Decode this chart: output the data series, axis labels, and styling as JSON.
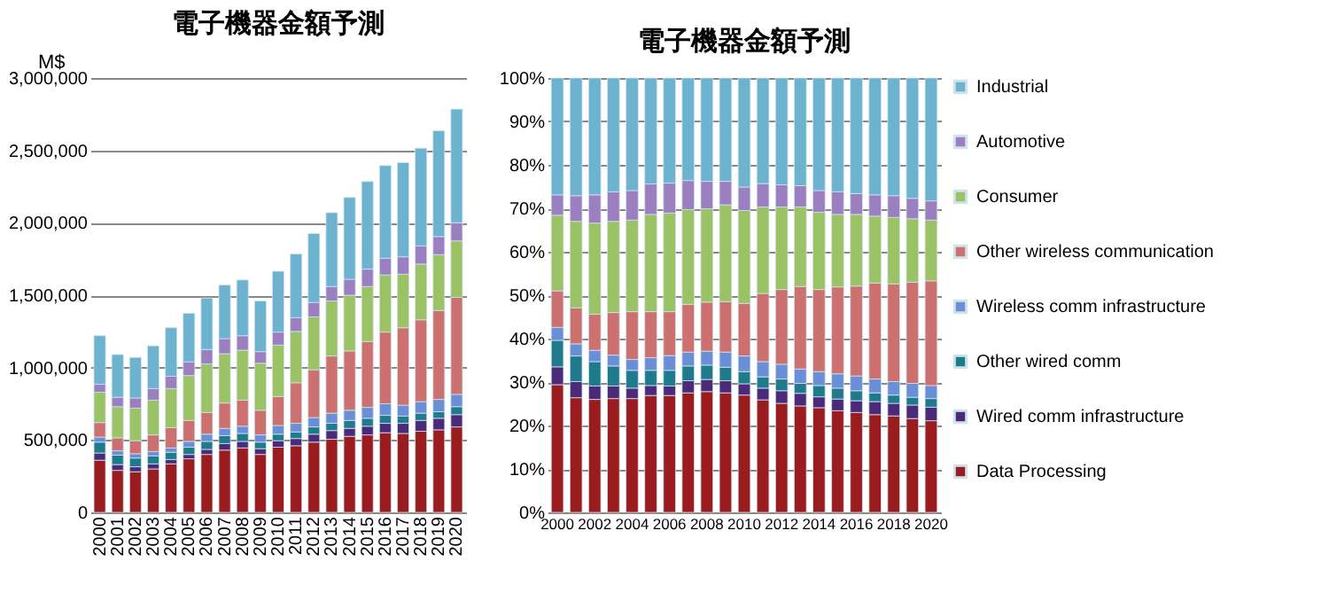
{
  "chart_data": [
    {
      "type": "bar",
      "title": "電子機器金額予測",
      "ylabel": "M$",
      "stacked": true,
      "grid": "y",
      "legend": false,
      "categories": [
        "2000",
        "2001",
        "2002",
        "2003",
        "2004",
        "2005",
        "2006",
        "2007",
        "2008",
        "2009",
        "2010",
        "2011",
        "2012",
        "2013",
        "2014",
        "2015",
        "2016",
        "2017",
        "2018",
        "2019",
        "2020"
      ],
      "ylim": [
        0,
        3000000
      ],
      "yticks": [
        {
          "value": 0,
          "label": "0"
        },
        {
          "value": 500000,
          "label": "500,000"
        },
        {
          "value": 1000000,
          "label": "1,000,000"
        },
        {
          "value": 1500000,
          "label": "1,500,000"
        },
        {
          "value": 2000000,
          "label": "2,000,000"
        },
        {
          "value": 2500000,
          "label": "2,500,000"
        },
        {
          "value": 3000000,
          "label": "3,000,000"
        }
      ],
      "series": [
        {
          "color": "#9b1c1f",
          "values": [
            360000,
            290000,
            280000,
            300000,
            335000,
            370000,
            400000,
            430000,
            445000,
            400000,
            450000,
            460000,
            485000,
            505000,
            525000,
            535000,
            550000,
            545000,
            560000,
            570000,
            590000
          ]
        },
        {
          "color": "#4b2a7a",
          "values": [
            50000,
            40000,
            35000,
            35000,
            30000,
            30000,
            35000,
            45000,
            45000,
            40000,
            45000,
            50000,
            55000,
            60000,
            55000,
            60000,
            65000,
            70000,
            75000,
            80000,
            85000
          ]
        },
        {
          "color": "#1f7a8c",
          "values": [
            75000,
            65000,
            60000,
            55000,
            50000,
            50000,
            55000,
            55000,
            55000,
            45000,
            45000,
            45000,
            50000,
            50000,
            55000,
            55000,
            55000,
            50000,
            50000,
            45000,
            55000
          ]
        },
        {
          "color": "#6b8fd6",
          "values": [
            35000,
            30000,
            30000,
            30000,
            30000,
            40000,
            50000,
            50000,
            50000,
            50000,
            60000,
            60000,
            65000,
            70000,
            70000,
            75000,
            80000,
            75000,
            80000,
            85000,
            85000
          ]
        },
        {
          "color": "#cd7070",
          "values": [
            100000,
            90000,
            90000,
            115000,
            140000,
            145000,
            150000,
            175000,
            180000,
            170000,
            200000,
            280000,
            330000,
            395000,
            410000,
            455000,
            495000,
            535000,
            565000,
            615000,
            670000
          ]
        },
        {
          "color": "#9bc265",
          "values": [
            210000,
            215000,
            225000,
            240000,
            270000,
            310000,
            335000,
            340000,
            345000,
            325000,
            355000,
            355000,
            365000,
            380000,
            385000,
            380000,
            395000,
            370000,
            385000,
            385000,
            390000
          ]
        },
        {
          "color": "#9b7fc0",
          "values": [
            55000,
            65000,
            70000,
            80000,
            85000,
            95000,
            100000,
            105000,
            100000,
            80000,
            90000,
            95000,
            100000,
            100000,
            110000,
            120000,
            115000,
            120000,
            125000,
            125000,
            125000
          ]
        },
        {
          "color": "#6db3cf",
          "values": [
            335000,
            295000,
            280000,
            295000,
            335000,
            335000,
            355000,
            370000,
            385000,
            350000,
            420000,
            440000,
            475000,
            510000,
            565000,
            605000,
            640000,
            650000,
            675000,
            730000,
            785000
          ]
        }
      ]
    },
    {
      "type": "bar",
      "title": "電子機器金額予測",
      "stacked": true,
      "grid": "y",
      "legend": "right",
      "categories": [
        "2000",
        null,
        "2002",
        null,
        "2004",
        null,
        "2006",
        null,
        "2008",
        null,
        "2010",
        null,
        "2012",
        null,
        "2014",
        null,
        "2016",
        null,
        "2018",
        null,
        "2020"
      ],
      "ylim": [
        0,
        100
      ],
      "yticks": [
        {
          "value": 0,
          "label": "0%"
        },
        {
          "value": 10,
          "label": "10%"
        },
        {
          "value": 20,
          "label": "20%"
        },
        {
          "value": 30,
          "label": "30%"
        },
        {
          "value": 40,
          "label": "40%"
        },
        {
          "value": 50,
          "label": "50%"
        },
        {
          "value": 60,
          "label": "60%"
        },
        {
          "value": 70,
          "label": "70%"
        },
        {
          "value": 80,
          "label": "80%"
        },
        {
          "value": 90,
          "label": "90%"
        },
        {
          "value": 100,
          "label": "100%"
        }
      ],
      "series": [
        {
          "name": "Data Processing",
          "color": "#9b1c1f",
          "values": [
            29.4,
            26.4,
            26.0,
            26.2,
            26.2,
            26.9,
            26.9,
            27.5,
            27.8,
            27.5,
            27.0,
            25.9,
            25.1,
            24.5,
            24.1,
            23.4,
            23.0,
            22.5,
            22.2,
            21.6,
            21.1
          ]
        },
        {
          "name": "Wired comm infrastructure",
          "color": "#4b2a7a",
          "values": [
            4.1,
            3.7,
            3.1,
            2.9,
            2.4,
            2.3,
            2.2,
            2.8,
            2.8,
            2.8,
            2.6,
            2.7,
            2.9,
            2.9,
            2.5,
            2.7,
            2.7,
            3.0,
            2.9,
            3.1,
            3.1
          ]
        },
        {
          "name": "Other wired comm",
          "color": "#1f7a8c",
          "values": [
            6.1,
            5.9,
            5.6,
            4.6,
            4.1,
            3.5,
            3.6,
            3.4,
            3.3,
            3.1,
            2.8,
            2.6,
            2.7,
            2.3,
            2.6,
            2.5,
            2.3,
            2.0,
            1.9,
            1.8,
            2.0
          ]
        },
        {
          "name": "Wireless comm infrastructure",
          "color": "#6b8fd6",
          "values": [
            3.0,
            2.8,
            2.6,
            2.5,
            2.5,
            2.9,
            3.4,
            3.2,
            3.2,
            3.5,
            3.6,
            3.5,
            3.4,
            3.3,
            3.2,
            3.3,
            3.4,
            3.2,
            3.1,
            3.2,
            3.0
          ]
        },
        {
          "name": "Other wireless communication",
          "color": "#cd7070",
          "values": [
            8.4,
            8.3,
            8.3,
            9.8,
            11.0,
            10.6,
            10.1,
            11.0,
            11.3,
            11.6,
            12.1,
            15.7,
            17.2,
            19.0,
            18.9,
            20.0,
            20.7,
            22.1,
            22.5,
            23.3,
            24.1
          ]
        },
        {
          "name": "Consumer",
          "color": "#9bc265",
          "values": [
            17.4,
            19.9,
            21.0,
            21.0,
            21.1,
            22.4,
            22.7,
            21.8,
            21.5,
            22.3,
            21.4,
            19.9,
            19.0,
            18.3,
            17.8,
            16.7,
            16.5,
            15.4,
            15.3,
            14.6,
            14.0
          ]
        },
        {
          "name": "Automotive",
          "color": "#9b7fc0",
          "values": [
            4.7,
            5.9,
            6.5,
            6.8,
            6.8,
            7.0,
            6.9,
            6.7,
            6.3,
            5.4,
            5.4,
            5.4,
            5.1,
            4.9,
            5.0,
            5.2,
            4.8,
            4.9,
            5.0,
            4.7,
            4.4
          ]
        },
        {
          "name": "Industrial",
          "color": "#6db3cf",
          "values": [
            26.9,
            27.1,
            26.9,
            26.2,
            25.9,
            24.4,
            24.2,
            23.6,
            23.8,
            23.8,
            25.1,
            24.3,
            24.6,
            24.8,
            25.9,
            26.2,
            26.6,
            26.9,
            27.1,
            27.7,
            28.3
          ]
        }
      ]
    }
  ]
}
